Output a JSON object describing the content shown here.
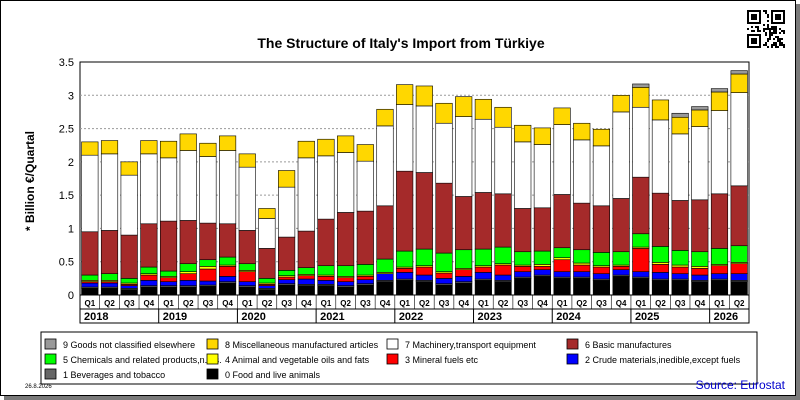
{
  "chart_data": {
    "type": "bar",
    "stacked": true,
    "title": "The Structure of Italy's Import from Türkiye",
    "ylabel": "* Billion €/Quartal",
    "ylim": [
      0,
      3.5
    ],
    "yticks": [
      "0",
      "0.5",
      "1",
      "1.5",
      "2",
      "2.5",
      "3",
      "3.5"
    ],
    "grid": true,
    "quarter_labels": [
      "Q1",
      "Q2",
      "Q3",
      "Q4",
      "Q1",
      "Q2",
      "Q3",
      "Q4",
      "Q1",
      "Q2",
      "Q3",
      "Q4",
      "Q1",
      "Q2",
      "Q3",
      "Q4",
      "Q1",
      "Q2",
      "Q3",
      "Q4",
      "Q1",
      "Q2",
      "Q3",
      "Q4",
      "Q1",
      "Q2",
      "Q3",
      "Q4",
      "Q1",
      "Q2",
      "Q3",
      "Q4",
      "Q1",
      "Q2"
    ],
    "years": [
      "2018",
      "2019",
      "2020",
      "2021",
      "2022",
      "2023",
      "2024",
      "2025",
      "2026"
    ],
    "series": [
      {
        "name": "0 Food and live animals",
        "color": "#000000",
        "values": [
          0.1,
          0.1,
          0.08,
          0.12,
          0.12,
          0.12,
          0.13,
          0.18,
          0.12,
          0.08,
          0.15,
          0.14,
          0.14,
          0.12,
          0.15,
          0.2,
          0.22,
          0.2,
          0.15,
          0.18,
          0.22,
          0.2,
          0.25,
          0.28,
          0.25,
          0.25,
          0.22,
          0.28,
          0.25,
          0.22,
          0.22,
          0.2,
          0.22,
          0.2
        ]
      },
      {
        "name": "1 Beverages and tobacco",
        "color": "#666666",
        "values": [
          0.02,
          0.02,
          0.02,
          0.02,
          0.02,
          0.02,
          0.02,
          0.02,
          0.02,
          0.02,
          0.02,
          0.02,
          0.02,
          0.02,
          0.02,
          0.02,
          0.02,
          0.02,
          0.02,
          0.02,
          0.02,
          0.02,
          0.02,
          0.02,
          0.02,
          0.02,
          0.02,
          0.02,
          0.02,
          0.02,
          0.02,
          0.02,
          0.02,
          0.02
        ]
      },
      {
        "name": "2 Crude materials,inedible,except fuels",
        "color": "#0000ff",
        "values": [
          0.06,
          0.06,
          0.04,
          0.08,
          0.06,
          0.08,
          0.06,
          0.08,
          0.06,
          0.04,
          0.06,
          0.08,
          0.06,
          0.06,
          0.06,
          0.1,
          0.1,
          0.08,
          0.08,
          0.08,
          0.1,
          0.08,
          0.08,
          0.08,
          0.08,
          0.08,
          0.08,
          0.08,
          0.08,
          0.1,
          0.08,
          0.08,
          0.08,
          0.1
        ]
      },
      {
        "name": "3 Mineral fuels etc",
        "color": "#ff0000",
        "values": [
          0.02,
          0.02,
          0.02,
          0.08,
          0.06,
          0.1,
          0.18,
          0.15,
          0.15,
          0.02,
          0.04,
          0.05,
          0.06,
          0.06,
          0.05,
          0.0,
          0.06,
          0.12,
          0.08,
          0.1,
          0.08,
          0.15,
          0.08,
          0.05,
          0.18,
          0.1,
          0.1,
          0.05,
          0.35,
          0.12,
          0.1,
          0.1,
          0.12,
          0.15
        ]
      },
      {
        "name": "4 Animal and vegetable oils and fats",
        "color": "#ffff00",
        "values": [
          0.02,
          0.02,
          0.02,
          0.02,
          0.02,
          0.03,
          0.04,
          0.02,
          0.02,
          0.02,
          0.02,
          0.02,
          0.02,
          0.02,
          0.02,
          0.02,
          0.02,
          0.02,
          0.02,
          0.02,
          0.02,
          0.02,
          0.02,
          0.03,
          0.03,
          0.03,
          0.02,
          0.02,
          0.02,
          0.03,
          0.03,
          0.03,
          0.02,
          0.02
        ]
      },
      {
        "name": "5 Chemicals and related products,n.e.s.",
        "color": "#00ff00",
        "values": [
          0.08,
          0.1,
          0.07,
          0.1,
          0.08,
          0.12,
          0.1,
          0.12,
          0.1,
          0.07,
          0.08,
          0.1,
          0.14,
          0.16,
          0.16,
          0.2,
          0.24,
          0.25,
          0.28,
          0.28,
          0.25,
          0.25,
          0.2,
          0.2,
          0.15,
          0.2,
          0.2,
          0.2,
          0.2,
          0.24,
          0.22,
          0.22,
          0.24,
          0.25
        ]
      },
      {
        "name": "6 Basic manufactures",
        "color": "#a52a2a",
        "values": [
          0.65,
          0.65,
          0.65,
          0.65,
          0.75,
          0.65,
          0.55,
          0.5,
          0.5,
          0.45,
          0.5,
          0.55,
          0.7,
          0.8,
          0.8,
          0.8,
          1.2,
          1.15,
          1.05,
          0.8,
          0.85,
          0.8,
          0.65,
          0.65,
          0.8,
          0.7,
          0.7,
          0.8,
          0.85,
          0.8,
          0.75,
          0.78,
          0.82,
          0.9
        ]
      },
      {
        "name": "7 Machinery,transport equipment",
        "color": "#ffffff",
        "values": [
          1.15,
          1.15,
          0.9,
          1.05,
          0.95,
          1.05,
          1.0,
          1.1,
          0.95,
          0.45,
          0.75,
          1.1,
          0.95,
          0.9,
          0.75,
          1.2,
          1.0,
          1.0,
          0.9,
          1.2,
          1.1,
          1.0,
          1.0,
          0.95,
          1.05,
          0.95,
          0.9,
          1.3,
          1.05,
          1.1,
          1.0,
          1.1,
          1.25,
          1.4
        ]
      },
      {
        "name": "8 Miscellaneous manufactured articles",
        "color": "#ffd700",
        "values": [
          0.2,
          0.2,
          0.2,
          0.2,
          0.25,
          0.25,
          0.2,
          0.22,
          0.2,
          0.15,
          0.25,
          0.25,
          0.25,
          0.25,
          0.25,
          0.25,
          0.3,
          0.3,
          0.3,
          0.3,
          0.3,
          0.3,
          0.25,
          0.25,
          0.25,
          0.25,
          0.25,
          0.25,
          0.3,
          0.3,
          0.25,
          0.25,
          0.28,
          0.28
        ]
      },
      {
        "name": "9 Goods not classified elsewhere",
        "color": "#999999",
        "values": [
          0.0,
          0.0,
          0.0,
          0.0,
          0.0,
          0.0,
          0.0,
          0.0,
          0.0,
          0.0,
          0.0,
          0.0,
          0.0,
          0.0,
          0.0,
          0.0,
          0.0,
          0.0,
          0.0,
          0.0,
          0.0,
          0.0,
          0.0,
          0.0,
          0.0,
          0.0,
          0.0,
          0.0,
          0.05,
          0.0,
          0.06,
          0.05,
          0.05,
          0.05
        ]
      }
    ],
    "legend_position": "bottom"
  },
  "footer": {
    "date": "26.8.2026",
    "source": "Source: Eurostat"
  },
  "qr_icon": "qr-code-icon"
}
